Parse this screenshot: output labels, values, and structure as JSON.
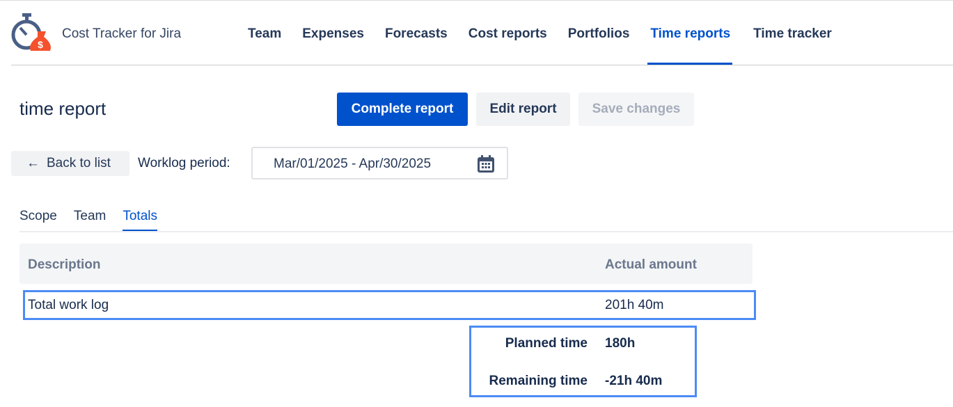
{
  "app": {
    "name": "Cost Tracker for Jira",
    "logo_icon": "stopwatch-money-bag-icon"
  },
  "nav": [
    {
      "label": "Team"
    },
    {
      "label": "Expenses"
    },
    {
      "label": "Forecasts"
    },
    {
      "label": "Cost reports"
    },
    {
      "label": "Portfolios"
    },
    {
      "label": "Time reports",
      "active": true
    },
    {
      "label": "Time tracker"
    }
  ],
  "page": {
    "title": "time report"
  },
  "toolbar": {
    "complete": "Complete report",
    "edit": "Edit report",
    "save": "Save changes"
  },
  "filters": {
    "back": "Back to list",
    "back_icon": "arrow-left-icon",
    "period_label": "Worklog period:",
    "period_value": "Mar/01/2025 - Apr/30/2025",
    "calendar_icon": "calendar-icon"
  },
  "tabs": [
    {
      "label": "Scope"
    },
    {
      "label": "Team"
    },
    {
      "label": "Totals",
      "active": true
    }
  ],
  "table": {
    "headers": [
      "Description",
      "Actual amount"
    ],
    "rows": [
      {
        "description": "Total work log",
        "amount": "201h 40m"
      }
    ]
  },
  "summary": [
    {
      "label": "Planned time",
      "value": "180h"
    },
    {
      "label": "Remaining time",
      "value": "-21h 40m"
    }
  ],
  "colors": {
    "accent": "#0052cc",
    "highlight": "#4c8bf5",
    "logo_orange": "#f4512c"
  }
}
